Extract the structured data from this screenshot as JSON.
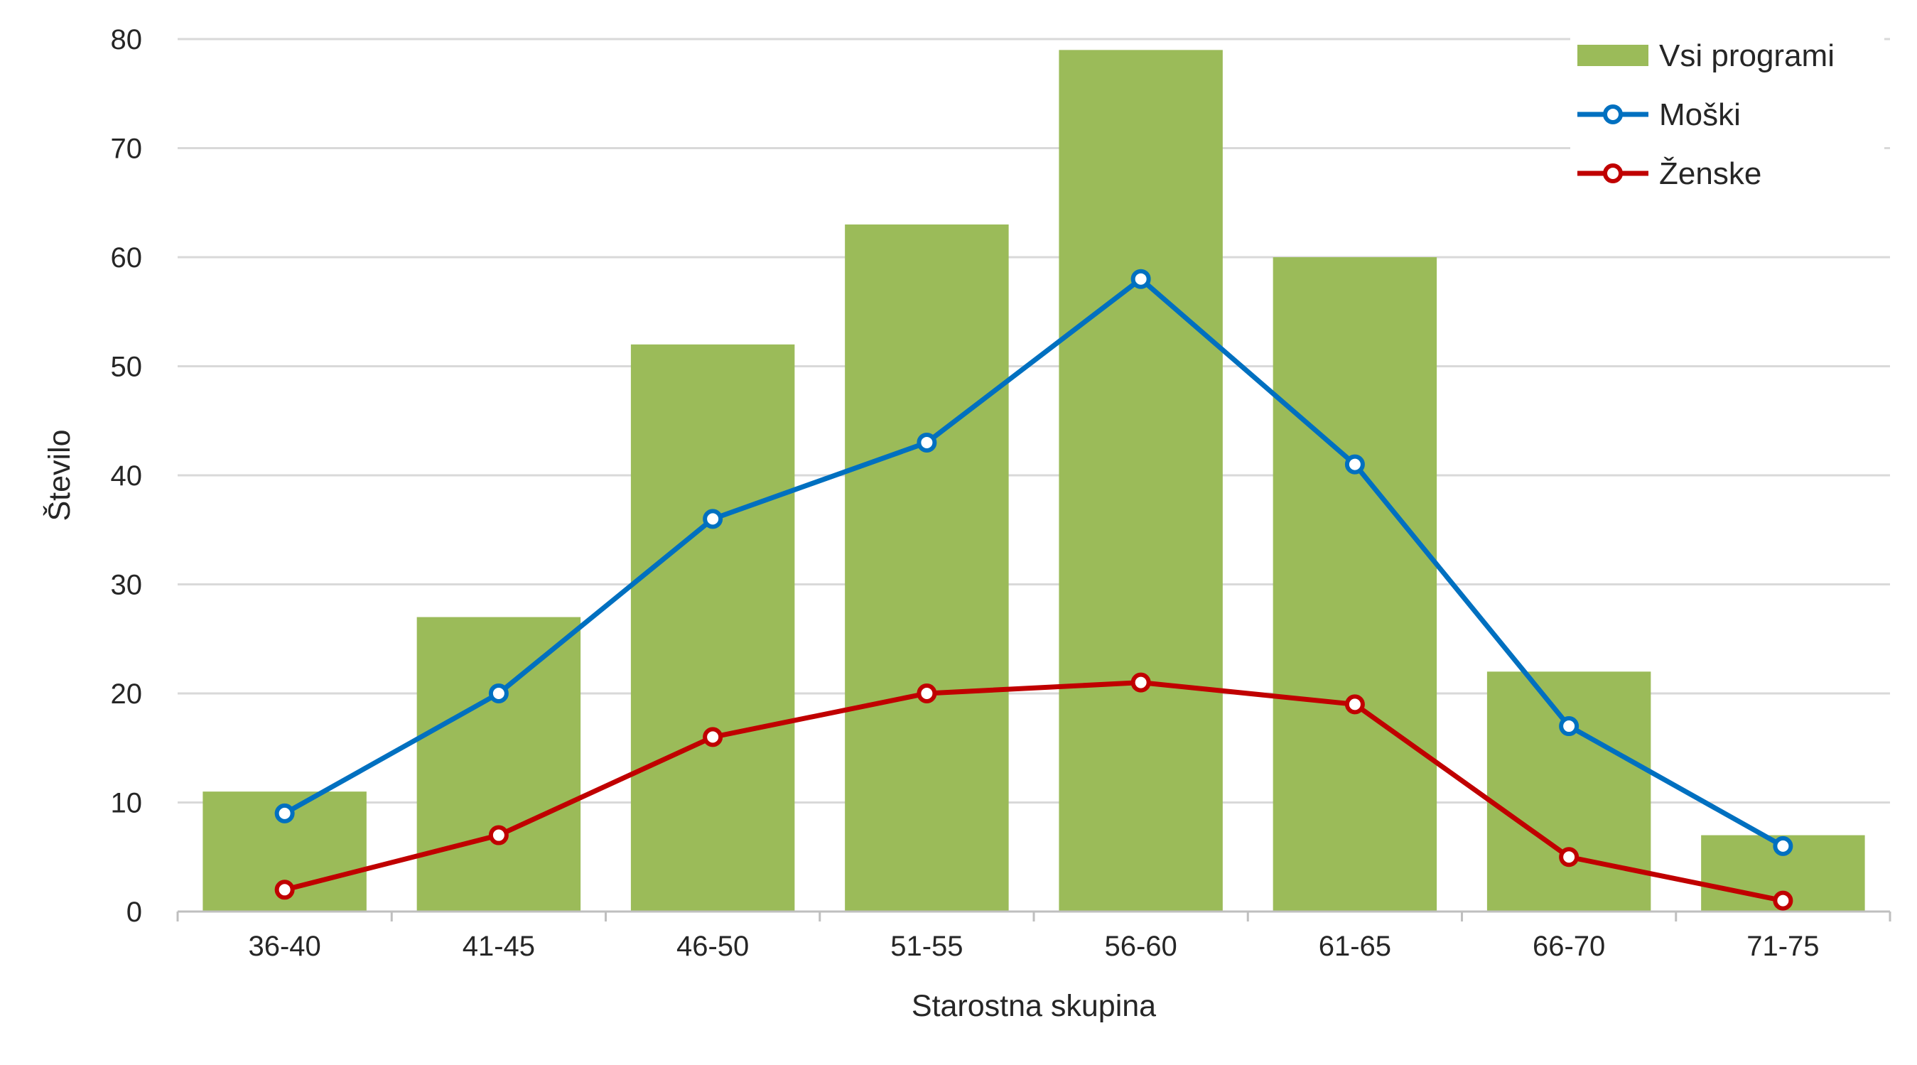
{
  "chart_data": {
    "type": "bar",
    "categories": [
      "36-40",
      "41-45",
      "46-50",
      "51-55",
      "56-60",
      "61-65",
      "66-70",
      "71-75"
    ],
    "series": [
      {
        "name": "Vsi programi",
        "type": "bar",
        "color": "#9bbb59",
        "values": [
          11,
          27,
          52,
          63,
          79,
          60,
          22,
          7
        ]
      },
      {
        "name": "Moški",
        "type": "line",
        "color": "#0070c0",
        "values": [
          9,
          20,
          36,
          43,
          58,
          41,
          17,
          6
        ]
      },
      {
        "name": "Ženske",
        "type": "line",
        "color": "#c00000",
        "values": [
          2,
          7,
          16,
          20,
          21,
          19,
          5,
          1
        ]
      }
    ],
    "xlabel": "Starostna skupina",
    "ylabel": "Število",
    "ylim": [
      0,
      80
    ],
    "yticks": [
      "0",
      "10",
      "20",
      "30",
      "40",
      "50",
      "60",
      "70",
      "80"
    ],
    "grid": true,
    "legend_position": "top-right"
  }
}
